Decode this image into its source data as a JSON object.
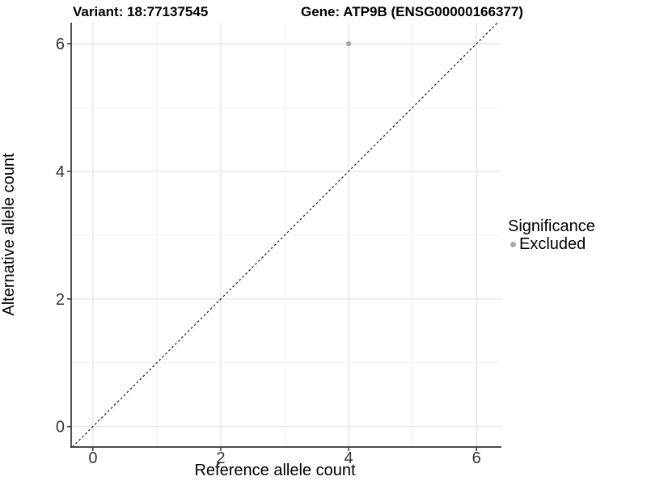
{
  "header": {
    "variant_title": "Variant: 18:77137545",
    "gene_title": "Gene: ATP9B (ENSG00000166377)"
  },
  "legend": {
    "title": "Significance",
    "items": [
      {
        "label": "Excluded",
        "color": "#a8a8a8"
      }
    ]
  },
  "colors": {
    "background": "#ffffff",
    "point": "#a8a8a8",
    "grid_major": "#e5e5e5",
    "grid_minor": "#f0f0f0",
    "axis_line": "#333333",
    "tick_label": "#333333",
    "identity_line": "#1a1a1a"
  },
  "chart_data": {
    "type": "scatter",
    "title": "Variant: 18:77137545   Gene: ATP9B (ENSG00000166377)",
    "xlabel": "Reference allele count",
    "ylabel": "Alternative allele count",
    "xlim": [
      -0.34,
      6.39
    ],
    "ylim": [
      -0.32,
      6.33
    ],
    "xticks": [
      0,
      2,
      4,
      6
    ],
    "yticks": [
      0,
      2,
      4,
      6
    ],
    "xminor": [
      1,
      3,
      5
    ],
    "yminor": [
      1,
      3,
      5
    ],
    "grid": true,
    "legend_position": "right",
    "identity_line": {
      "style": "dashed",
      "slope": 1,
      "intercept": 0
    },
    "series": [
      {
        "name": "Excluded",
        "color": "#a8a8a8",
        "points": [
          {
            "x": 4,
            "y": 6
          }
        ]
      }
    ]
  }
}
